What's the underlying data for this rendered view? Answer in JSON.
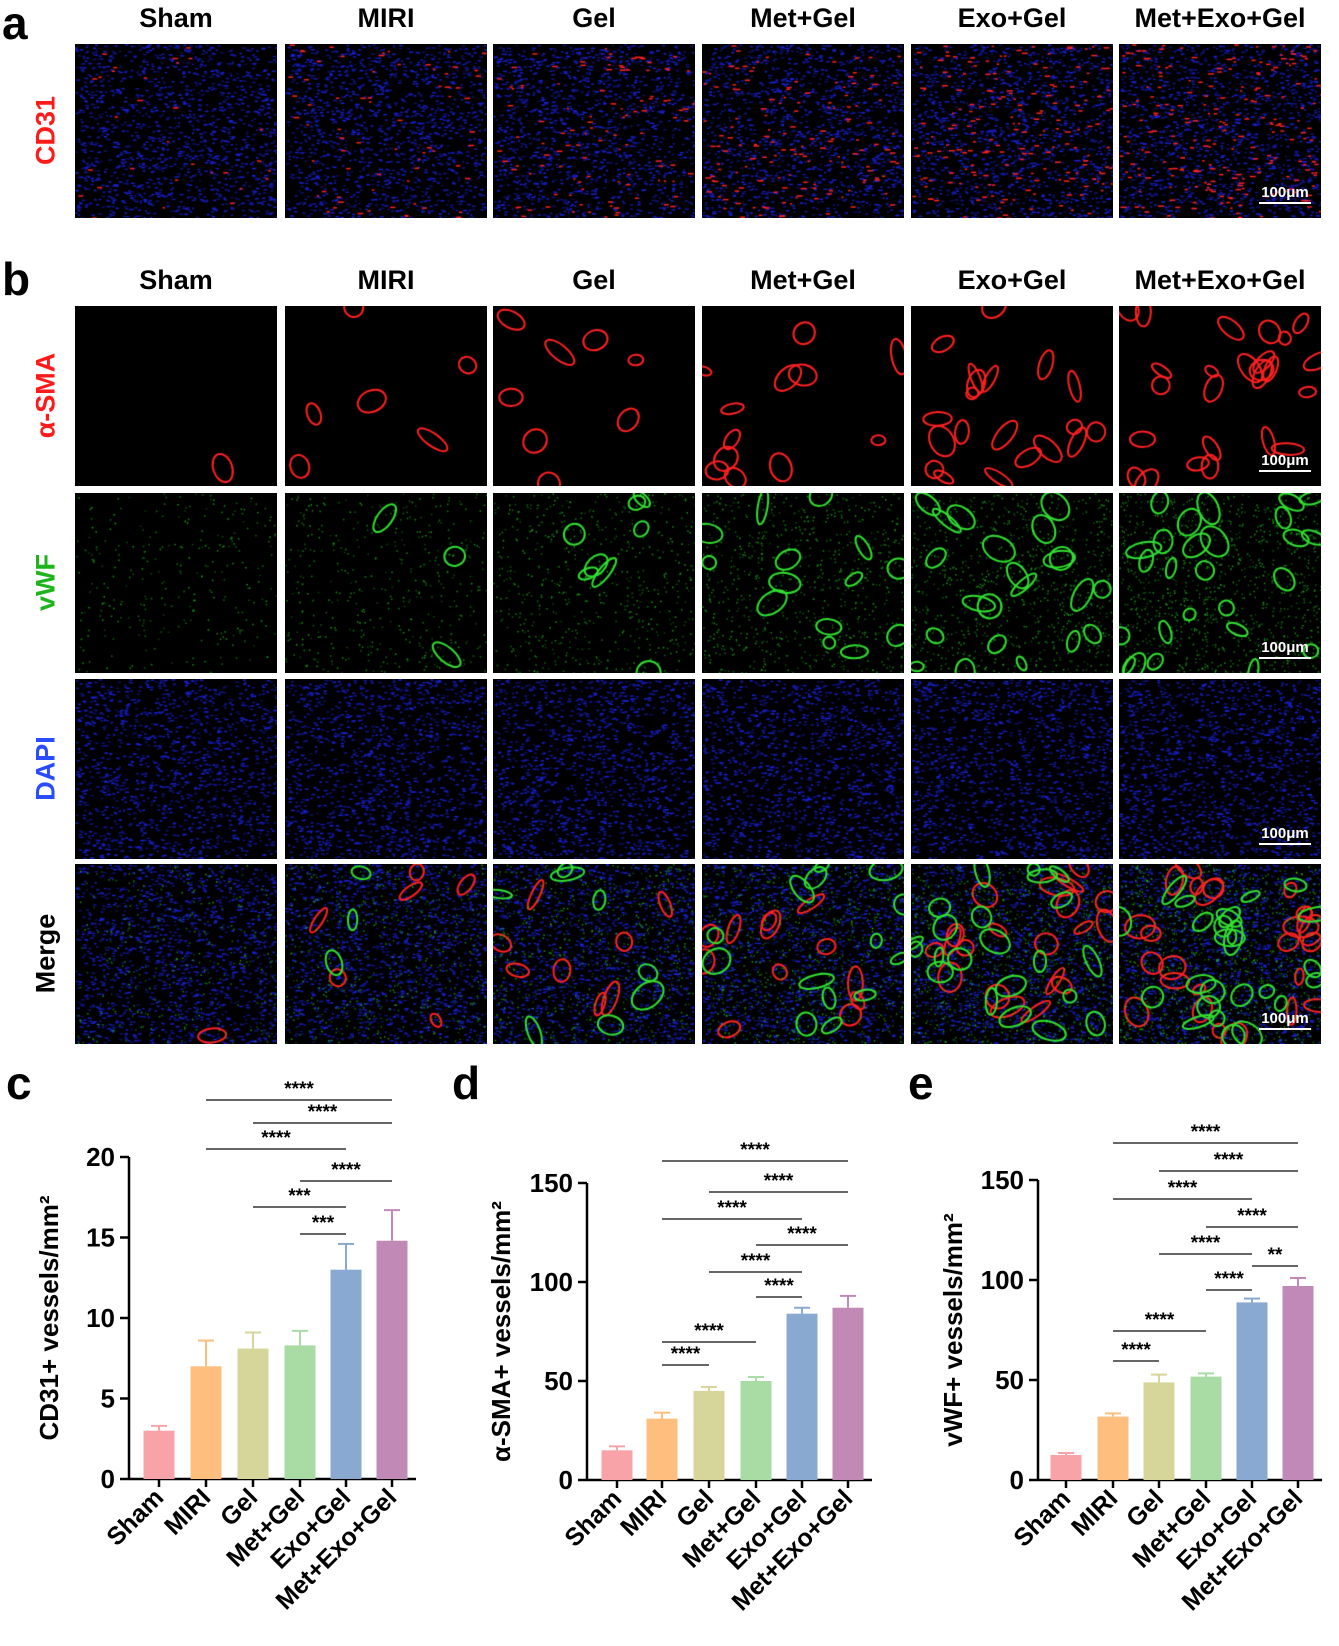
{
  "panels": {
    "a": "a",
    "b": "b",
    "c": "c",
    "d": "d",
    "e": "e"
  },
  "groups": [
    "Sham",
    "MIRI",
    "Gel",
    "Met+Gel",
    "Exo+Gel",
    "Met+Exo+Gel"
  ],
  "panel_a": {
    "row_labels": [
      {
        "text": "CD31",
        "color": "#ff1a1a"
      }
    ],
    "scale_bar": "100μm"
  },
  "panel_b": {
    "row_labels": [
      {
        "text": "α-SMA",
        "color": "#ff1a1a"
      },
      {
        "text": "vWF",
        "color": "#1db41d"
      },
      {
        "text": "DAPI",
        "color": "#2a4bff"
      },
      {
        "text": "Merge",
        "color": "#000000"
      }
    ],
    "scale_bar": "100μm"
  },
  "bar_colors": [
    "#F8A3A8",
    "#FDBE7E",
    "#D6D69A",
    "#A9DBA5",
    "#8AA9D0",
    "#C18AB6"
  ],
  "chart_data": [
    {
      "type": "bar",
      "panel": "c",
      "categories": [
        "Sham",
        "MIRI",
        "Gel",
        "Met+Gel",
        "Exo+Gel",
        "Met+Exo+Gel"
      ],
      "values": [
        3.0,
        7.0,
        8.1,
        8.3,
        13.0,
        14.8
      ],
      "error_upper": [
        3.3,
        8.6,
        9.1,
        9.2,
        14.6,
        16.7
      ],
      "ylabel": "CD31+ vessels/mm²",
      "ylim": [
        0,
        20
      ],
      "yticks": [
        "0",
        "5",
        "10",
        "15",
        "20"
      ],
      "grid": false,
      "significance": [
        {
          "from": "MIRI",
          "to": "Met+Exo+Gel",
          "label": "****"
        },
        {
          "from": "Gel",
          "to": "Met+Exo+Gel",
          "label": "****"
        },
        {
          "from": "MIRI",
          "to": "Exo+Gel",
          "label": "****"
        },
        {
          "from": "Met+Gel",
          "to": "Met+Exo+Gel",
          "label": "****"
        },
        {
          "from": "Gel",
          "to": "Exo+Gel",
          "label": "***"
        },
        {
          "from": "Met+Gel",
          "to": "Exo+Gel",
          "label": "***"
        }
      ]
    },
    {
      "type": "bar",
      "panel": "d",
      "categories": [
        "Sham",
        "MIRI",
        "Gel",
        "Met+Gel",
        "Exo+Gel",
        "Met+Exo+Gel"
      ],
      "values": [
        15,
        31,
        45,
        50,
        84,
        87
      ],
      "error_upper": [
        17,
        34,
        47,
        52,
        87,
        93
      ],
      "ylabel": "α-SMA+ vessels/mm²",
      "ylim": [
        0,
        150
      ],
      "yticks": [
        "0",
        "50",
        "100",
        "150"
      ],
      "grid": false,
      "significance": [
        {
          "from": "MIRI",
          "to": "Met+Exo+Gel",
          "label": "****"
        },
        {
          "from": "Gel",
          "to": "Met+Exo+Gel",
          "label": "****"
        },
        {
          "from": "MIRI",
          "to": "Exo+Gel",
          "label": "****"
        },
        {
          "from": "Met+Gel",
          "to": "Met+Exo+Gel",
          "label": "****"
        },
        {
          "from": "Gel",
          "to": "Exo+Gel",
          "label": "****"
        },
        {
          "from": "Met+Gel",
          "to": "Exo+Gel",
          "label": "****"
        },
        {
          "from": "MIRI",
          "to": "Met+Gel",
          "label": "****"
        },
        {
          "from": "MIRI",
          "to": "Gel",
          "label": "****"
        }
      ]
    },
    {
      "type": "bar",
      "panel": "e",
      "categories": [
        "Sham",
        "MIRI",
        "Gel",
        "Met+Gel",
        "Exo+Gel",
        "Met+Exo+Gel"
      ],
      "values": [
        12.5,
        31.7,
        48.8,
        51.7,
        88.8,
        97
      ],
      "error_upper": [
        13.5,
        33.3,
        52.7,
        53.3,
        90.7,
        101
      ],
      "ylabel": "vWF+ vessels/mm²",
      "ylim": [
        0,
        150
      ],
      "yticks": [
        "0",
        "50",
        "100",
        "150"
      ],
      "grid": false,
      "significance": [
        {
          "from": "MIRI",
          "to": "Met+Exo+Gel",
          "label": "****"
        },
        {
          "from": "Gel",
          "to": "Met+Exo+Gel",
          "label": "****"
        },
        {
          "from": "MIRI",
          "to": "Exo+Gel",
          "label": "****"
        },
        {
          "from": "Met+Gel",
          "to": "Met+Exo+Gel",
          "label": "****"
        },
        {
          "from": "Gel",
          "to": "Exo+Gel",
          "label": "****"
        },
        {
          "from": "Exo+Gel",
          "to": "Met+Exo+Gel",
          "label": "**"
        },
        {
          "from": "Met+Gel",
          "to": "Exo+Gel",
          "label": "****"
        },
        {
          "from": "MIRI",
          "to": "Met+Gel",
          "label": "****"
        },
        {
          "from": "MIRI",
          "to": "Gel",
          "label": "****"
        }
      ]
    }
  ]
}
